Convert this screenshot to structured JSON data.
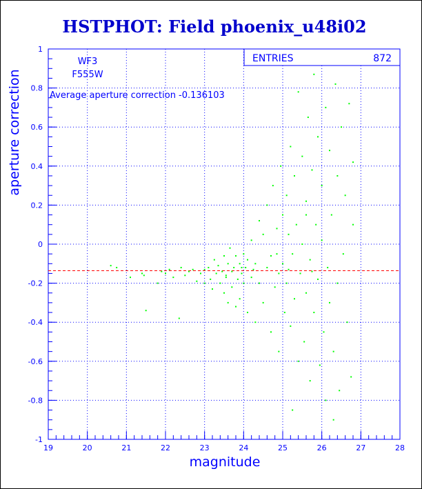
{
  "colors": {
    "frame": "#0000ff",
    "points": "#00ff00",
    "average_line": "#ff0000",
    "background": "#ffffff",
    "title": "#0000cc"
  },
  "chart_data": {
    "type": "scatter",
    "title": "HSTPHOT: Field phoenix_u48i02",
    "xlabel": "magnitude",
    "ylabel": "aperture correction",
    "xlim": [
      19,
      28
    ],
    "ylim": [
      -1,
      1
    ],
    "x_ticks": [
      "19",
      "20",
      "21",
      "22",
      "23",
      "24",
      "25",
      "26",
      "27",
      "28"
    ],
    "y_ticks": [
      "-1",
      "-0.8",
      "-0.6",
      "-0.4",
      "-0.2",
      "0",
      "0.2",
      "0.4",
      "0.6",
      "0.8",
      "1"
    ],
    "grid": true,
    "labels": {
      "instrument": "WF3",
      "filter": "F555W",
      "average_text": "Average aperture correction -0.136103"
    },
    "average_value": -0.136103,
    "stats_box": {
      "label": "ENTRIES",
      "value": "872"
    },
    "series": [
      {
        "points": [
          [
            20.6,
            -0.11
          ],
          [
            20.75,
            -0.12
          ],
          [
            21.1,
            -0.17
          ],
          [
            21.4,
            -0.15
          ],
          [
            21.45,
            -0.16
          ],
          [
            21.5,
            -0.34
          ],
          [
            21.8,
            -0.2
          ],
          [
            21.9,
            -0.14
          ],
          [
            22.0,
            -0.15
          ],
          [
            22.1,
            -0.13
          ],
          [
            22.2,
            -0.17
          ],
          [
            22.35,
            -0.38
          ],
          [
            22.4,
            -0.12
          ],
          [
            22.5,
            -0.16
          ],
          [
            22.6,
            -0.14
          ],
          [
            22.7,
            -0.13
          ],
          [
            22.8,
            -0.19
          ],
          [
            22.9,
            -0.15
          ],
          [
            23.0,
            -0.13
          ],
          [
            23.0,
            -0.2
          ],
          [
            23.1,
            -0.12
          ],
          [
            23.15,
            -0.18
          ],
          [
            23.2,
            -0.23
          ],
          [
            23.25,
            -0.08
          ],
          [
            23.3,
            -0.15
          ],
          [
            23.35,
            -0.11
          ],
          [
            23.4,
            -0.2
          ],
          [
            23.45,
            -0.14
          ],
          [
            23.5,
            -0.06
          ],
          [
            23.5,
            -0.25
          ],
          [
            23.55,
            -0.17
          ],
          [
            23.6,
            -0.1
          ],
          [
            23.6,
            -0.3
          ],
          [
            23.65,
            -0.02
          ],
          [
            23.7,
            -0.14
          ],
          [
            23.7,
            -0.22
          ],
          [
            23.75,
            -0.12
          ],
          [
            23.8,
            -0.32
          ],
          [
            23.8,
            -0.06
          ],
          [
            23.85,
            -0.18
          ],
          [
            23.9,
            -0.1
          ],
          [
            23.9,
            -0.28
          ],
          [
            23.95,
            -0.15
          ],
          [
            24.0,
            -0.05
          ],
          [
            24.0,
            -0.2
          ],
          [
            24.05,
            -0.12
          ],
          [
            24.1,
            -0.08
          ],
          [
            24.1,
            -0.35
          ],
          [
            24.2,
            0.02
          ],
          [
            24.2,
            -0.17
          ],
          [
            24.3,
            -0.1
          ],
          [
            24.3,
            -0.4
          ],
          [
            24.4,
            0.12
          ],
          [
            24.4,
            -0.2
          ],
          [
            24.5,
            0.05
          ],
          [
            24.5,
            -0.3
          ],
          [
            24.6,
            -0.12
          ],
          [
            24.6,
            0.2
          ],
          [
            24.7,
            -0.45
          ],
          [
            24.7,
            -0.06
          ],
          [
            24.75,
            0.3
          ],
          [
            24.8,
            -0.22
          ],
          [
            24.85,
            0.08
          ],
          [
            24.9,
            -0.15
          ],
          [
            24.9,
            -0.55
          ],
          [
            24.95,
            0.4
          ],
          [
            25.0,
            -0.1
          ],
          [
            25.0,
            0.15
          ],
          [
            25.05,
            -0.35
          ],
          [
            25.1,
            0.25
          ],
          [
            25.1,
            -0.2
          ],
          [
            25.15,
            0.05
          ],
          [
            25.2,
            0.5
          ],
          [
            25.2,
            -0.42
          ],
          [
            25.25,
            -0.05
          ],
          [
            25.3,
            0.35
          ],
          [
            25.3,
            -0.28
          ],
          [
            25.35,
            0.1
          ],
          [
            25.4,
            0.78
          ],
          [
            25.4,
            -0.6
          ],
          [
            25.45,
            -0.15
          ],
          [
            25.5,
            0.45
          ],
          [
            25.5,
            0.0
          ],
          [
            25.55,
            -0.5
          ],
          [
            25.6,
            0.22
          ],
          [
            25.6,
            -0.25
          ],
          [
            25.65,
            0.65
          ],
          [
            25.7,
            -0.08
          ],
          [
            25.7,
            -0.7
          ],
          [
            25.75,
            0.38
          ],
          [
            25.8,
            0.87
          ],
          [
            25.8,
            -0.35
          ],
          [
            25.85,
            0.1
          ],
          [
            25.9,
            -0.18
          ],
          [
            25.9,
            0.55
          ],
          [
            25.95,
            -0.62
          ],
          [
            26.0,
            0.02
          ],
          [
            26.0,
            0.3
          ],
          [
            26.05,
            -0.45
          ],
          [
            26.1,
            0.7
          ],
          [
            26.1,
            -0.8
          ],
          [
            26.15,
            -0.12
          ],
          [
            26.2,
            0.48
          ],
          [
            26.2,
            -0.3
          ],
          [
            26.25,
            0.15
          ],
          [
            26.3,
            -0.55
          ],
          [
            26.35,
            0.82
          ],
          [
            26.4,
            -0.2
          ],
          [
            26.4,
            0.35
          ],
          [
            26.45,
            -0.75
          ],
          [
            26.5,
            0.6
          ],
          [
            26.55,
            -0.05
          ],
          [
            26.6,
            0.25
          ],
          [
            26.65,
            -0.4
          ],
          [
            26.7,
            0.72
          ],
          [
            26.75,
            -0.68
          ],
          [
            26.8,
            0.1
          ],
          [
            26.8,
            0.42
          ],
          [
            25.25,
            -0.85
          ],
          [
            26.3,
            -0.9
          ],
          [
            25.6,
            0.15
          ],
          [
            24.85,
            -0.05
          ],
          [
            23.95,
            -0.12
          ],
          [
            23.55,
            -0.16
          ],
          [
            24.25,
            -0.13
          ],
          [
            25.15,
            -0.13
          ],
          [
            25.75,
            -0.14
          ]
        ]
      }
    ]
  }
}
